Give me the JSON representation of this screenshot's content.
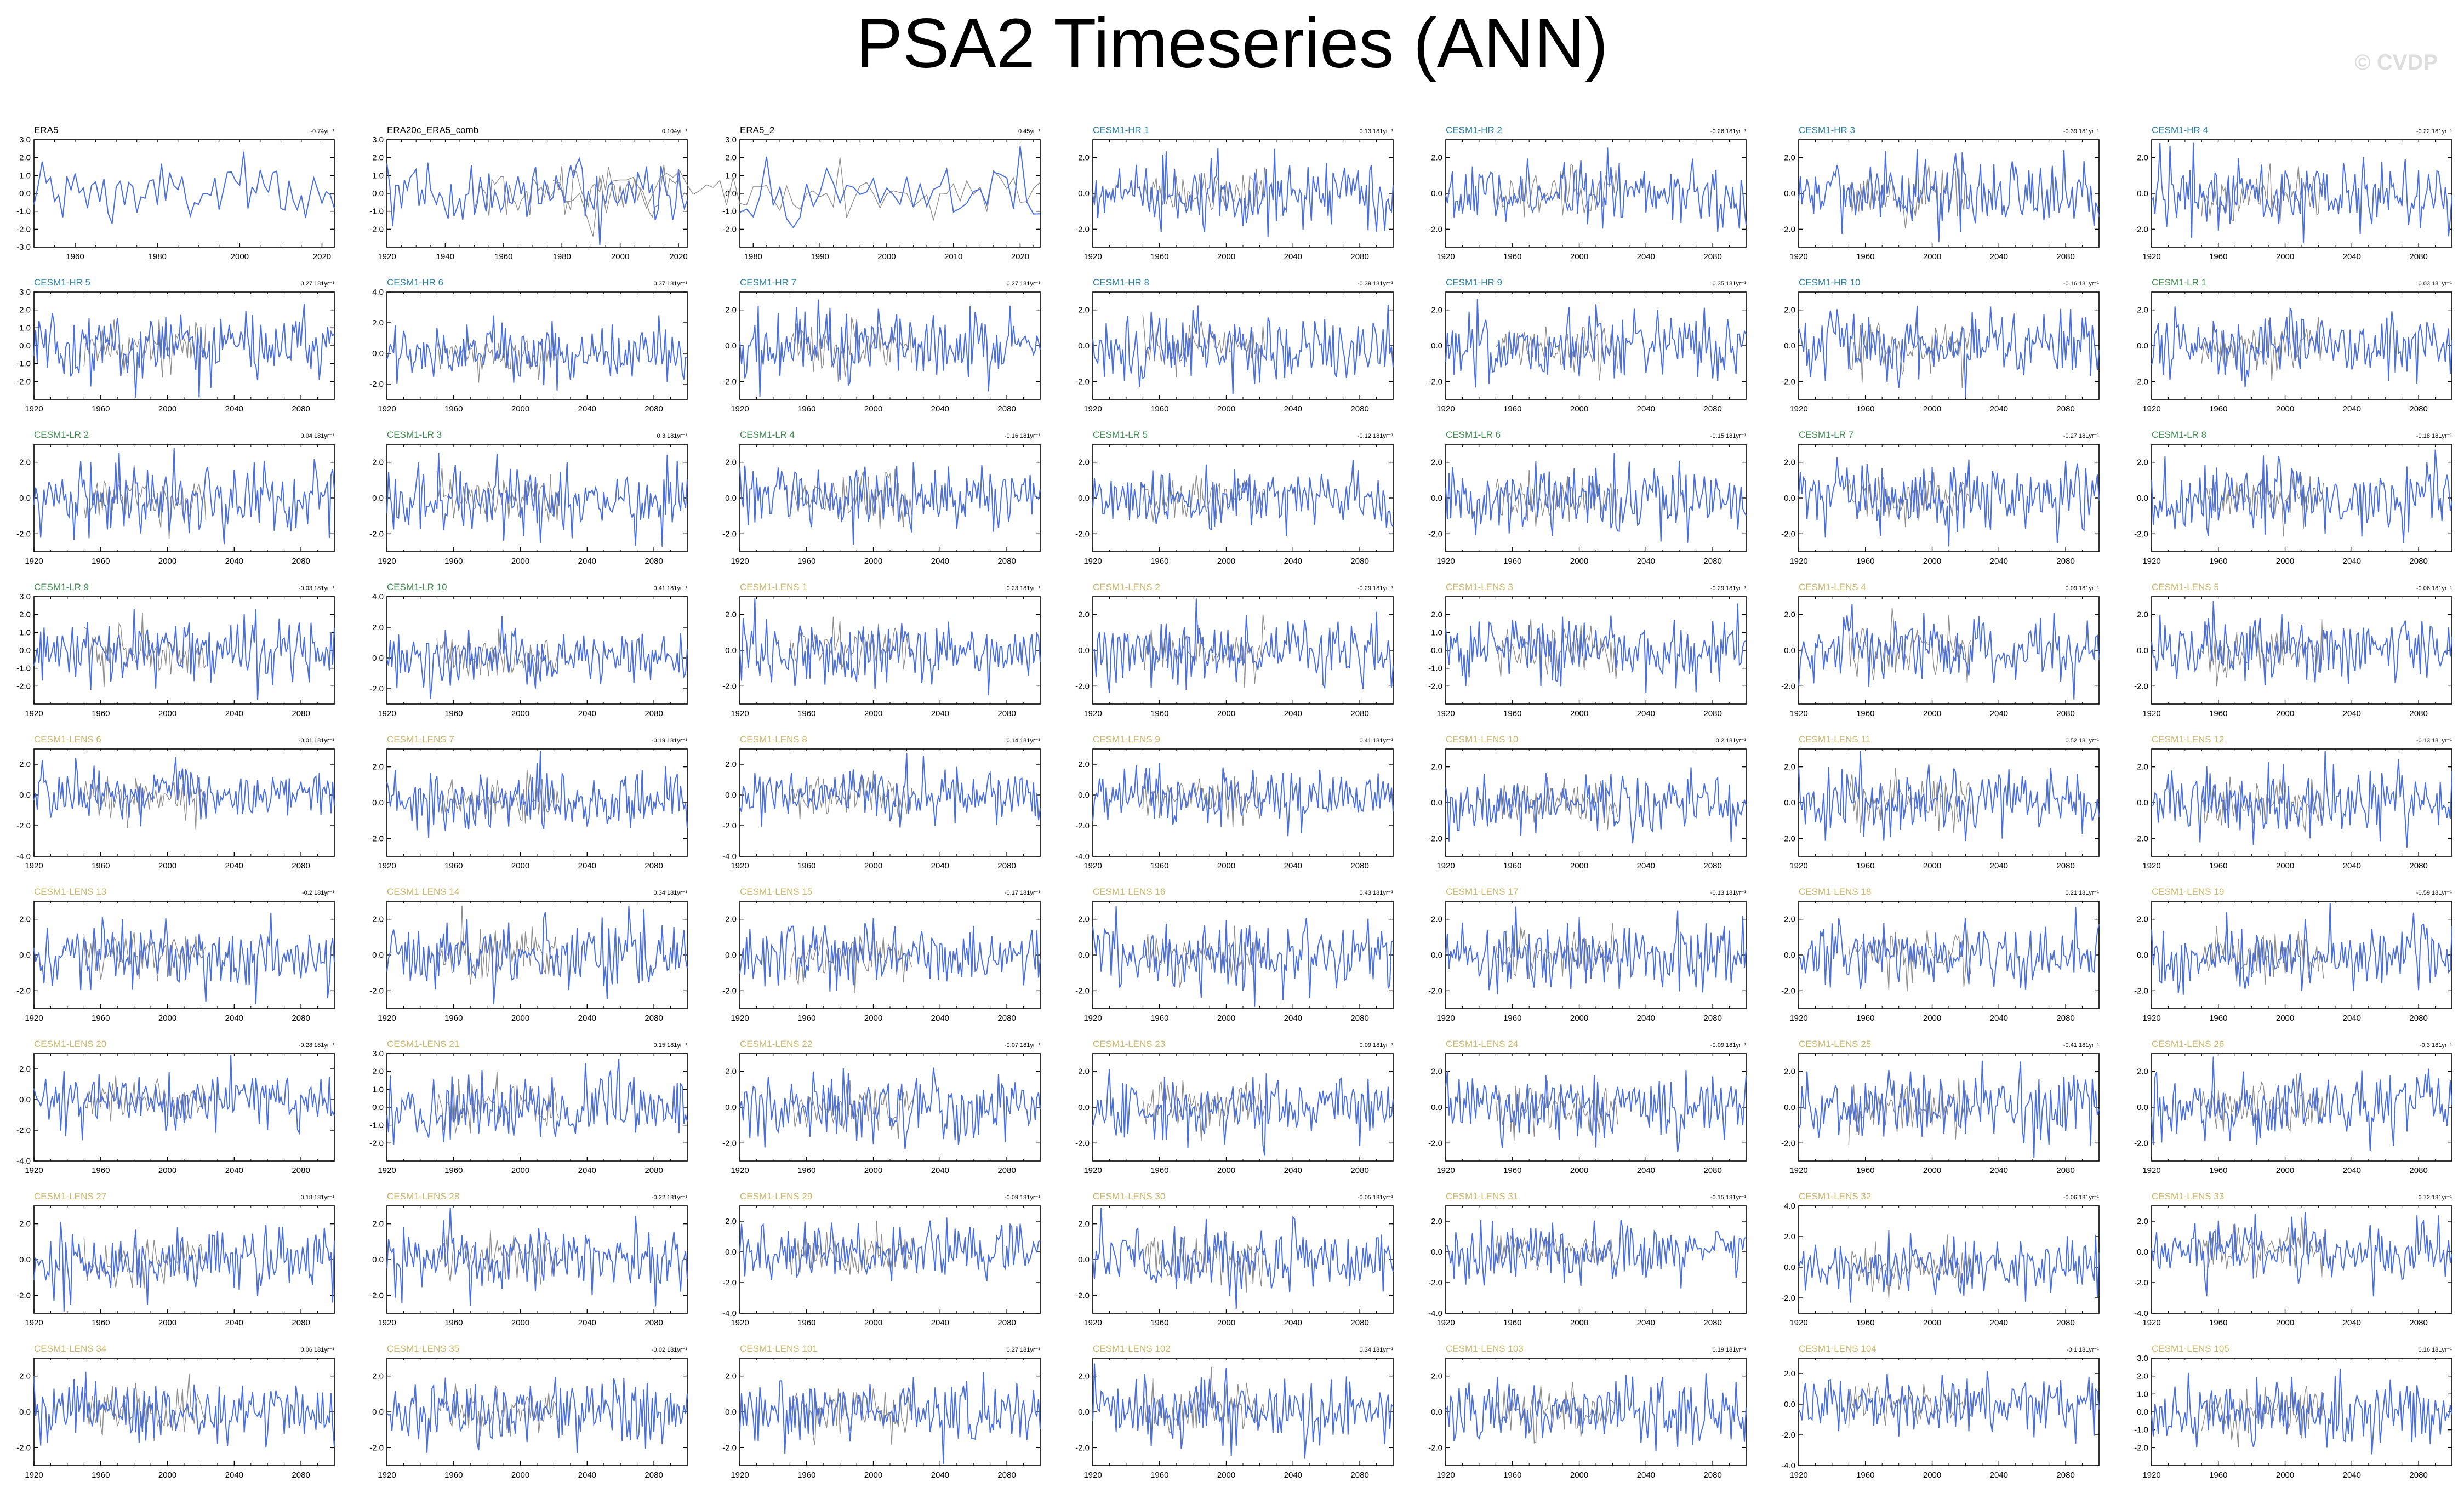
{
  "title": "PSA2 Timeseries (ANN)",
  "credit": "© CVDP",
  "colors": {
    "series": "#4a6fdc",
    "observed": "#8c8c8c",
    "frame": "#000000",
    "label_obs": "#000000",
    "label_hr": "#2a7f9e",
    "label_lr": "#3d8a4e",
    "label_lens": "#c9b66a"
  },
  "chart_data": [
    {
      "type": "line",
      "name": "ERA5",
      "trend": "-0.74yr⁻¹",
      "x_start": 1950,
      "x_end": 2023,
      "xticks": [
        1960,
        1980,
        2000,
        2020
      ],
      "yticks": [
        3,
        2,
        1,
        0,
        -1,
        -2,
        -3
      ],
      "ylim": [
        -3,
        3
      ],
      "group": "obs",
      "overlay": false
    },
    {
      "type": "line",
      "name": "ERA20c_ERA5_comb",
      "trend": "0.104yr⁻¹",
      "x_start": 1920,
      "x_end": 2023,
      "xticks": [
        1920,
        1940,
        1960,
        1980,
        2000,
        2020
      ],
      "yticks": [
        3,
        2,
        1,
        0,
        -1,
        -2
      ],
      "ylim": [
        -3,
        3
      ],
      "group": "obs",
      "overlay": true
    },
    {
      "type": "line",
      "name": "ERA5_2",
      "trend": "0.45yr⁻¹",
      "x_start": 1978,
      "x_end": 2023,
      "xticks": [
        1980,
        1990,
        2000,
        2010,
        2020
      ],
      "yticks": [
        3,
        2,
        1,
        0,
        -1,
        -2
      ],
      "ylim": [
        -3,
        3
      ],
      "group": "obs",
      "overlay": true
    },
    {
      "type": "line",
      "name": "CESM1-HR 1",
      "trend": "0.13 181yr⁻¹",
      "group": "hr",
      "yticks": [
        2,
        0,
        -2
      ],
      "ylim": [
        -3,
        3
      ]
    },
    {
      "type": "line",
      "name": "CESM1-HR 2",
      "trend": "-0.26 181yr⁻¹",
      "group": "hr",
      "yticks": [
        2,
        0,
        -2
      ],
      "ylim": [
        -3,
        3
      ]
    },
    {
      "type": "line",
      "name": "CESM1-HR 3",
      "trend": "-0.39 181yr⁻¹",
      "group": "hr",
      "yticks": [
        2,
        0,
        -2
      ],
      "ylim": [
        -3,
        3
      ]
    },
    {
      "type": "line",
      "name": "CESM1-HR 4",
      "trend": "-0.22 181yr⁻¹",
      "group": "hr",
      "yticks": [
        2,
        0,
        -2
      ],
      "ylim": [
        -3,
        3
      ]
    },
    {
      "type": "line",
      "name": "CESM1-HR 5",
      "trend": "0.27 181yr⁻¹",
      "group": "hr",
      "yticks": [
        3,
        2,
        1,
        0,
        -1,
        -2
      ],
      "ylim": [
        -3,
        3
      ]
    },
    {
      "type": "line",
      "name": "CESM1-HR 6",
      "trend": "0.37 181yr⁻¹",
      "group": "hr",
      "yticks": [
        4,
        2,
        0,
        -2
      ],
      "ylim": [
        -3,
        4
      ]
    },
    {
      "type": "line",
      "name": "CESM1-HR 7",
      "trend": "0.27 181yr⁻¹",
      "group": "hr",
      "yticks": [
        2,
        0,
        -2
      ],
      "ylim": [
        -3,
        3
      ]
    },
    {
      "type": "line",
      "name": "CESM1-HR 8",
      "trend": "-0.39 181yr⁻¹",
      "group": "hr",
      "yticks": [
        2,
        0,
        -2
      ],
      "ylim": [
        -3,
        3
      ]
    },
    {
      "type": "line",
      "name": "CESM1-HR 9",
      "trend": "0.35 181yr⁻¹",
      "group": "hr",
      "yticks": [
        2,
        0,
        -2
      ],
      "ylim": [
        -3,
        3
      ]
    },
    {
      "type": "line",
      "name": "CESM1-HR 10",
      "trend": "-0.16 181yr⁻¹",
      "group": "hr",
      "yticks": [
        2,
        0,
        -2
      ],
      "ylim": [
        -3,
        3
      ]
    },
    {
      "type": "line",
      "name": "CESM1-LR 1",
      "trend": "0.03 181yr⁻¹",
      "group": "lr",
      "yticks": [
        2,
        0,
        -2
      ],
      "ylim": [
        -3,
        3
      ]
    },
    {
      "type": "line",
      "name": "CESM1-LR 2",
      "trend": "0.04 181yr⁻¹",
      "group": "lr",
      "yticks": [
        2,
        0,
        -2
      ],
      "ylim": [
        -3,
        3
      ]
    },
    {
      "type": "line",
      "name": "CESM1-LR 3",
      "trend": "0.3 181yr⁻¹",
      "group": "lr",
      "yticks": [
        2,
        0,
        -2
      ],
      "ylim": [
        -3,
        3
      ]
    },
    {
      "type": "line",
      "name": "CESM1-LR 4",
      "trend": "-0.16 181yr⁻¹",
      "group": "lr",
      "yticks": [
        2,
        0,
        -2
      ],
      "ylim": [
        -3,
        3
      ]
    },
    {
      "type": "line",
      "name": "CESM1-LR 5",
      "trend": "-0.12 181yr⁻¹",
      "group": "lr",
      "yticks": [
        2,
        0,
        -2
      ],
      "ylim": [
        -3,
        3
      ]
    },
    {
      "type": "line",
      "name": "CESM1-LR 6",
      "trend": "-0.15 181yr⁻¹",
      "group": "lr",
      "yticks": [
        2,
        0,
        -2
      ],
      "ylim": [
        -3,
        3
      ]
    },
    {
      "type": "line",
      "name": "CESM1-LR 7",
      "trend": "-0.27 181yr⁻¹",
      "group": "lr",
      "yticks": [
        2,
        0,
        -2
      ],
      "ylim": [
        -3,
        3
      ]
    },
    {
      "type": "line",
      "name": "CESM1-LR 8",
      "trend": "-0.18 181yr⁻¹",
      "group": "lr",
      "yticks": [
        2,
        0,
        -2
      ],
      "ylim": [
        -3,
        3
      ]
    },
    {
      "type": "line",
      "name": "CESM1-LR 9",
      "trend": "-0.03 181yr⁻¹",
      "group": "lr",
      "yticks": [
        3,
        2,
        1,
        0,
        -1,
        -2
      ],
      "ylim": [
        -3,
        3
      ]
    },
    {
      "type": "line",
      "name": "CESM1-LR 10",
      "trend": "0.41 181yr⁻¹",
      "group": "lr",
      "yticks": [
        4,
        2,
        0,
        -2
      ],
      "ylim": [
        -3,
        4
      ]
    },
    {
      "type": "line",
      "name": "CESM1-LENS 1",
      "trend": "0.23 181yr⁻¹",
      "group": "lens",
      "yticks": [
        2,
        0,
        -2
      ],
      "ylim": [
        -3,
        3
      ]
    },
    {
      "type": "line",
      "name": "CESM1-LENS 2",
      "trend": "-0.29 181yr⁻¹",
      "group": "lens",
      "yticks": [
        2,
        0,
        -2
      ],
      "ylim": [
        -3,
        3
      ]
    },
    {
      "type": "line",
      "name": "CESM1-LENS 3",
      "trend": "-0.29 181yr⁻¹",
      "group": "lens",
      "yticks": [
        2,
        1,
        0,
        -1,
        -2
      ],
      "ylim": [
        -3,
        3
      ]
    },
    {
      "type": "line",
      "name": "CESM1-LENS 4",
      "trend": "0.09 181yr⁻¹",
      "group": "lens",
      "yticks": [
        2,
        0,
        -2
      ],
      "ylim": [
        -3,
        3
      ]
    },
    {
      "type": "line",
      "name": "CESM1-LENS 5",
      "trend": "-0.06 181yr⁻¹",
      "group": "lens",
      "yticks": [
        2,
        0,
        -2
      ],
      "ylim": [
        -3,
        3
      ]
    },
    {
      "type": "line",
      "name": "CESM1-LENS 6",
      "trend": "-0.01 181yr⁻¹",
      "group": "lens",
      "yticks": [
        2,
        0,
        -2,
        -4
      ],
      "ylim": [
        -4,
        3
      ]
    },
    {
      "type": "line",
      "name": "CESM1-LENS 7",
      "trend": "-0.19 181yr⁻¹",
      "group": "lens",
      "yticks": [
        2,
        0,
        -2
      ],
      "ylim": [
        -3,
        3
      ]
    },
    {
      "type": "line",
      "name": "CESM1-LENS 8",
      "trend": "0.14 181yr⁻¹",
      "group": "lens",
      "yticks": [
        2,
        0,
        -2,
        -4
      ],
      "ylim": [
        -4,
        3
      ]
    },
    {
      "type": "line",
      "name": "CESM1-LENS 9",
      "trend": "0.41 181yr⁻¹",
      "group": "lens",
      "yticks": [
        2,
        0,
        -2,
        -4
      ],
      "ylim": [
        -4,
        3
      ]
    },
    {
      "type": "line",
      "name": "CESM1-LENS 10",
      "trend": "0.2 181yr⁻¹",
      "group": "lens",
      "yticks": [
        2,
        0,
        -2
      ],
      "ylim": [
        -3,
        3
      ]
    },
    {
      "type": "line",
      "name": "CESM1-LENS 11",
      "trend": "0.52 181yr⁻¹",
      "group": "lens",
      "yticks": [
        2,
        0,
        -2
      ],
      "ylim": [
        -3,
        3
      ]
    },
    {
      "type": "line",
      "name": "CESM1-LENS 12",
      "trend": "-0.13 181yr⁻¹",
      "group": "lens",
      "yticks": [
        2,
        0,
        -2
      ],
      "ylim": [
        -3,
        3
      ]
    },
    {
      "type": "line",
      "name": "CESM1-LENS 13",
      "trend": "-0.2 181yr⁻¹",
      "group": "lens",
      "yticks": [
        2,
        0,
        -2
      ],
      "ylim": [
        -3,
        3
      ]
    },
    {
      "type": "line",
      "name": "CESM1-LENS 14",
      "trend": "0.34 181yr⁻¹",
      "group": "lens",
      "yticks": [
        2,
        0,
        -2
      ],
      "ylim": [
        -3,
        3
      ]
    },
    {
      "type": "line",
      "name": "CESM1-LENS 15",
      "trend": "-0.17 181yr⁻¹",
      "group": "lens",
      "yticks": [
        2,
        0,
        -2
      ],
      "ylim": [
        -3,
        3
      ]
    },
    {
      "type": "line",
      "name": "CESM1-LENS 16",
      "trend": "0.43 181yr⁻¹",
      "group": "lens",
      "yticks": [
        2,
        0,
        -2
      ],
      "ylim": [
        -3,
        3
      ]
    },
    {
      "type": "line",
      "name": "CESM1-LENS 17",
      "trend": "-0.13 181yr⁻¹",
      "group": "lens",
      "yticks": [
        2,
        0,
        -2
      ],
      "ylim": [
        -3,
        3
      ]
    },
    {
      "type": "line",
      "name": "CESM1-LENS 18",
      "trend": "0.21 181yr⁻¹",
      "group": "lens",
      "yticks": [
        2,
        0,
        -2
      ],
      "ylim": [
        -3,
        3
      ]
    },
    {
      "type": "line",
      "name": "CESM1-LENS 19",
      "trend": "-0.59 181yr⁻¹",
      "group": "lens",
      "yticks": [
        2,
        0,
        -2
      ],
      "ylim": [
        -3,
        3
      ]
    },
    {
      "type": "line",
      "name": "CESM1-LENS 20",
      "trend": "-0.28 181yr⁻¹",
      "group": "lens",
      "yticks": [
        2,
        0,
        -2,
        -4
      ],
      "ylim": [
        -4,
        3
      ]
    },
    {
      "type": "line",
      "name": "CESM1-LENS 21",
      "trend": "0.15 181yr⁻¹",
      "group": "lens",
      "yticks": [
        3,
        2,
        1,
        0,
        -1,
        -2
      ],
      "ylim": [
        -3,
        3
      ]
    },
    {
      "type": "line",
      "name": "CESM1-LENS 22",
      "trend": "-0.07 181yr⁻¹",
      "group": "lens",
      "yticks": [
        2,
        0,
        -2
      ],
      "ylim": [
        -3,
        3
      ]
    },
    {
      "type": "line",
      "name": "CESM1-LENS 23",
      "trend": "0.09 181yr⁻¹",
      "group": "lens",
      "yticks": [
        2,
        0,
        -2
      ],
      "ylim": [
        -3,
        3
      ]
    },
    {
      "type": "line",
      "name": "CESM1-LENS 24",
      "trend": "-0.09 181yr⁻¹",
      "group": "lens",
      "yticks": [
        2,
        0,
        -2
      ],
      "ylim": [
        -3,
        3
      ]
    },
    {
      "type": "line",
      "name": "CESM1-LENS 25",
      "trend": "-0.41 181yr⁻¹",
      "group": "lens",
      "yticks": [
        2,
        0,
        -2
      ],
      "ylim": [
        -3,
        3
      ]
    },
    {
      "type": "line",
      "name": "CESM1-LENS 26",
      "trend": "-0.3 181yr⁻¹",
      "group": "lens",
      "yticks": [
        2,
        0,
        -2
      ],
      "ylim": [
        -3,
        3
      ]
    },
    {
      "type": "line",
      "name": "CESM1-LENS 27",
      "trend": "0.18 181yr⁻¹",
      "group": "lens",
      "yticks": [
        2,
        0,
        -2
      ],
      "ylim": [
        -3,
        3
      ]
    },
    {
      "type": "line",
      "name": "CESM1-LENS 28",
      "trend": "-0.22 181yr⁻¹",
      "group": "lens",
      "yticks": [
        2,
        0,
        -2
      ],
      "ylim": [
        -3,
        3
      ]
    },
    {
      "type": "line",
      "name": "CESM1-LENS 29",
      "trend": "-0.09 181yr⁻¹",
      "group": "lens",
      "yticks": [
        2,
        0,
        -2,
        -4
      ],
      "ylim": [
        -4,
        3
      ]
    },
    {
      "type": "line",
      "name": "CESM1-LENS 30",
      "trend": "-0.05 181yr⁻¹",
      "group": "lens",
      "yticks": [
        2,
        0,
        -2
      ],
      "ylim": [
        -3,
        3
      ]
    },
    {
      "type": "line",
      "name": "CESM1-LENS 31",
      "trend": "-0.15 181yr⁻¹",
      "group": "lens",
      "yticks": [
        2,
        0,
        -2,
        -4
      ],
      "ylim": [
        -4,
        3
      ]
    },
    {
      "type": "line",
      "name": "CESM1-LENS 32",
      "trend": "-0.06 181yr⁻¹",
      "group": "lens",
      "yticks": [
        4,
        2,
        0,
        -2
      ],
      "ylim": [
        -3,
        4
      ]
    },
    {
      "type": "line",
      "name": "CESM1-LENS 33",
      "trend": "0.72 181yr⁻¹",
      "group": "lens",
      "yticks": [
        2,
        0,
        -2,
        -4
      ],
      "ylim": [
        -4,
        3
      ]
    },
    {
      "type": "line",
      "name": "CESM1-LENS 34",
      "trend": "0.06 181yr⁻¹",
      "group": "lens",
      "yticks": [
        2,
        0,
        -2
      ],
      "ylim": [
        -3,
        3
      ]
    },
    {
      "type": "line",
      "name": "CESM1-LENS 35",
      "trend": "-0.02 181yr⁻¹",
      "group": "lens",
      "yticks": [
        2,
        0,
        -2
      ],
      "ylim": [
        -3,
        3
      ]
    },
    {
      "type": "line",
      "name": "CESM1-LENS 101",
      "trend": "0.27 181yr⁻¹",
      "group": "lens",
      "yticks": [
        2,
        0,
        -2
      ],
      "ylim": [
        -3,
        3
      ]
    },
    {
      "type": "line",
      "name": "CESM1-LENS 102",
      "trend": "0.34 181yr⁻¹",
      "group": "lens",
      "yticks": [
        2,
        0,
        -2
      ],
      "ylim": [
        -3,
        3
      ]
    },
    {
      "type": "line",
      "name": "CESM1-LENS 103",
      "trend": "0.19 181yr⁻¹",
      "group": "lens",
      "yticks": [
        2,
        0,
        -2
      ],
      "ylim": [
        -3,
        3
      ]
    },
    {
      "type": "line",
      "name": "CESM1-LENS 104",
      "trend": "-0.1 181yr⁻¹",
      "group": "lens",
      "yticks": [
        2,
        0,
        -2,
        -4
      ],
      "ylim": [
        -4,
        3
      ]
    },
    {
      "type": "line",
      "name": "CESM1-LENS 105",
      "trend": "0.16 181yr⁻¹",
      "group": "lens",
      "yticks": [
        3,
        2,
        1,
        0,
        -1,
        -2
      ],
      "ylim": [
        -3,
        3
      ]
    }
  ],
  "model_axis": {
    "x_start": 1920,
    "x_end": 2100,
    "xticks": [
      1920,
      1960,
      2000,
      2040,
      2080
    ]
  }
}
